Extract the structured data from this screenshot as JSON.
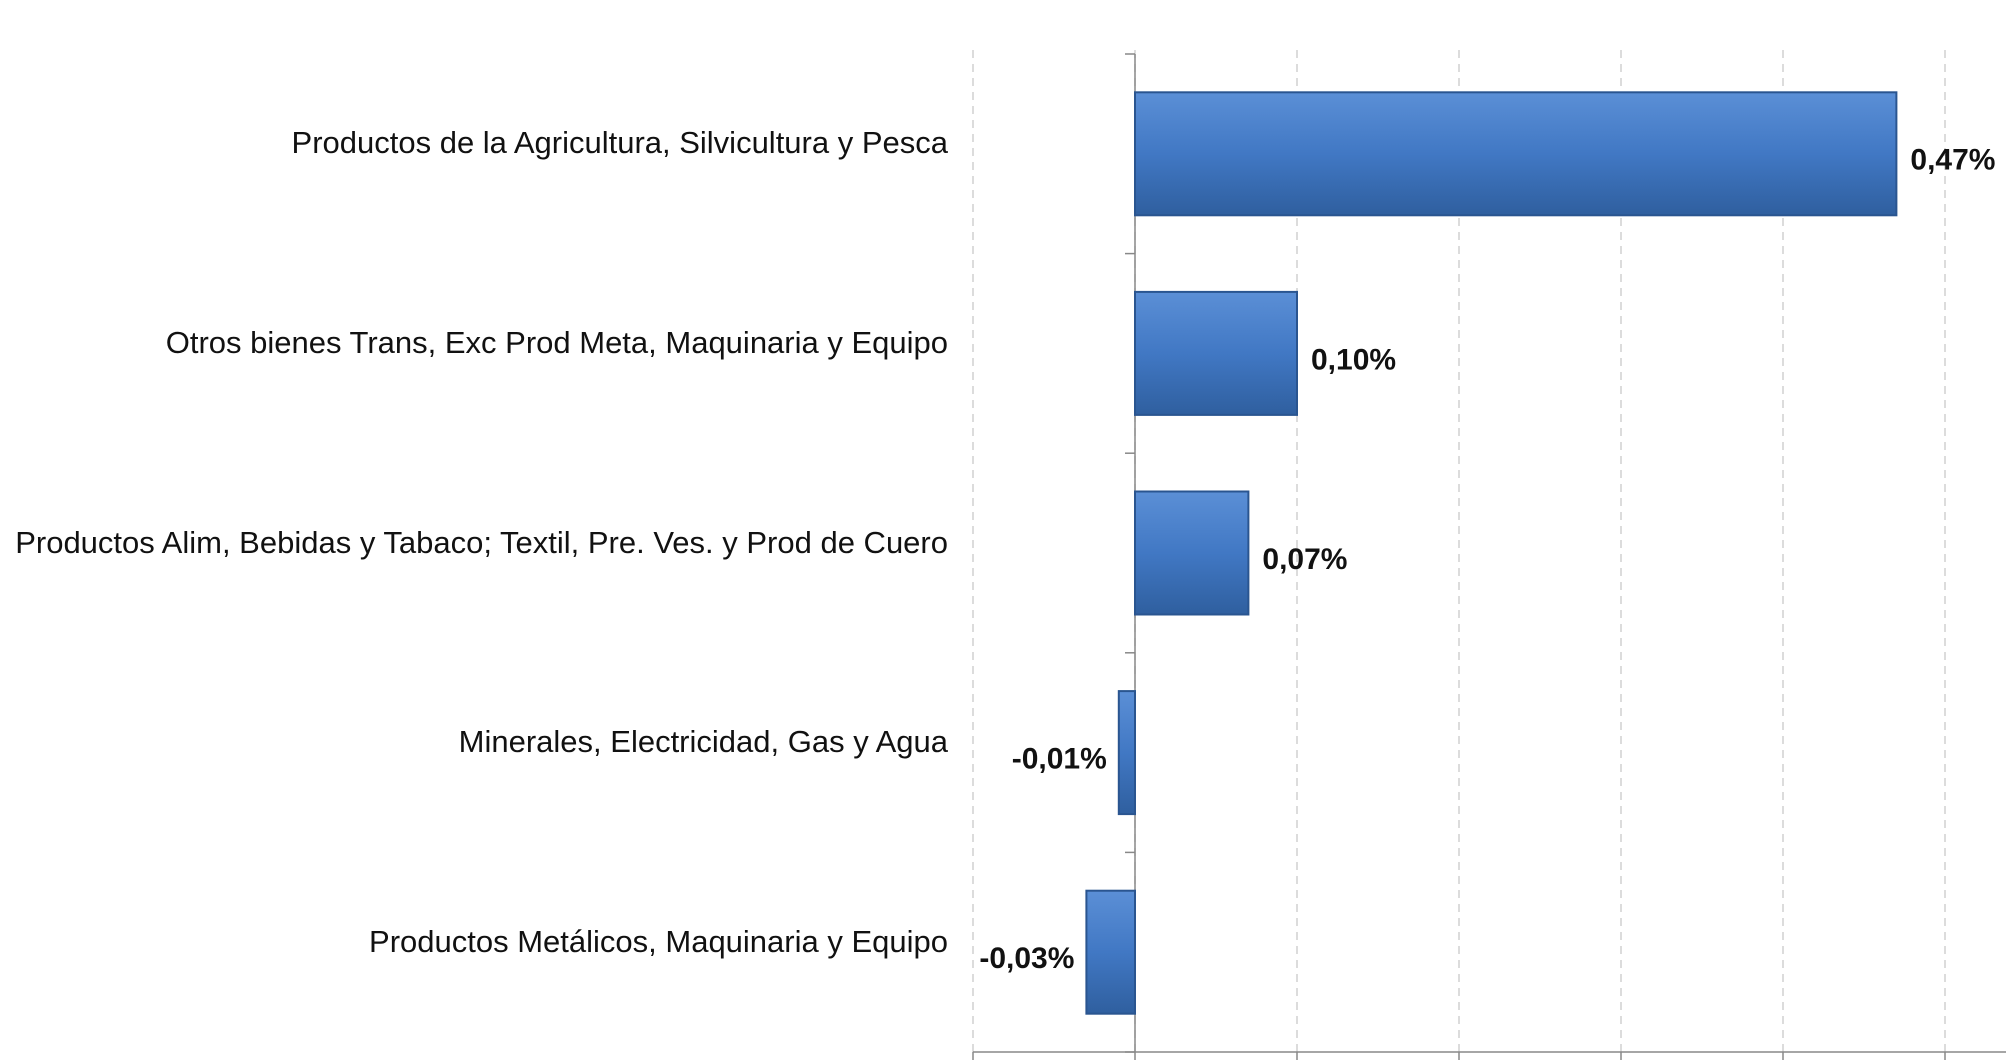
{
  "chart_data": {
    "type": "bar",
    "orientation": "horizontal",
    "categories": [
      "Productos de la Agricultura, Silvicultura y Pesca",
      "Otros bienes Trans, Exc Prod Meta, Maquinaria y Equipo",
      "Productos  Alim, Bebidas y Tabaco; Textil, Pre. Ves. y Prod de Cuero",
      "Minerales, Electricidad, Gas y Agua",
      "Productos Metálicos, Maquinaria y Equipo"
    ],
    "values": [
      0.47,
      0.1,
      0.07,
      -0.01,
      -0.03
    ],
    "value_labels": [
      "0,47%",
      "0,10%",
      "0,07%",
      "-0,01%",
      "-0,03%"
    ],
    "color": "#4178c4",
    "xlim": [
      -0.1,
      0.5
    ],
    "xticks": [
      -0.1,
      0,
      0.1,
      0.2,
      0.3,
      0.4,
      0.5
    ],
    "grid": true
  }
}
